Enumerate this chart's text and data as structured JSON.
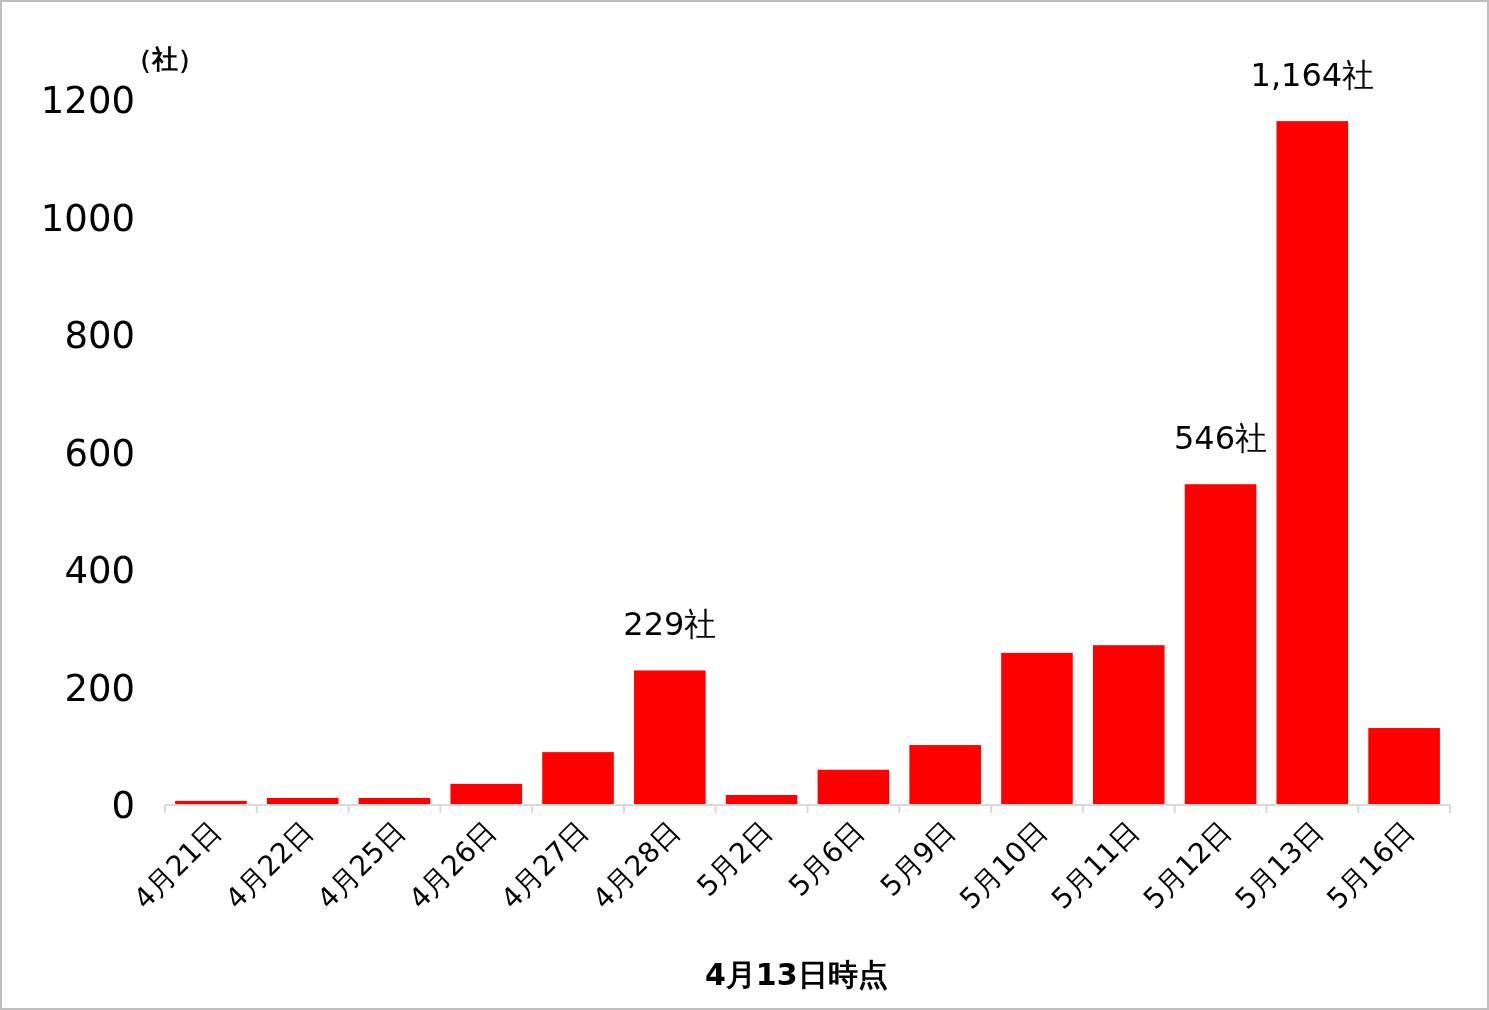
{
  "chart_data": {
    "type": "bar",
    "categories": [
      "4月21日",
      "4月22日",
      "4月25日",
      "4月26日",
      "4月27日",
      "4月28日",
      "5月2日",
      "5月6日",
      "5月9日",
      "5月10日",
      "5月11日",
      "5月12日",
      "5月13日",
      "5月16日"
    ],
    "values": [
      7,
      12,
      12,
      36,
      90,
      229,
      17,
      60,
      102,
      259,
      272,
      546,
      1164,
      131
    ],
    "value_labels": [
      null,
      null,
      null,
      null,
      null,
      "229社",
      null,
      null,
      null,
      null,
      null,
      "546社",
      "1,164社",
      null
    ],
    "color": "#ff0000",
    "ylabel": "（社）",
    "ylim": [
      0,
      1200
    ],
    "yticks": [
      0,
      200,
      400,
      600,
      800,
      1000,
      1200
    ],
    "annotations": [
      "4月13日時点"
    ]
  }
}
